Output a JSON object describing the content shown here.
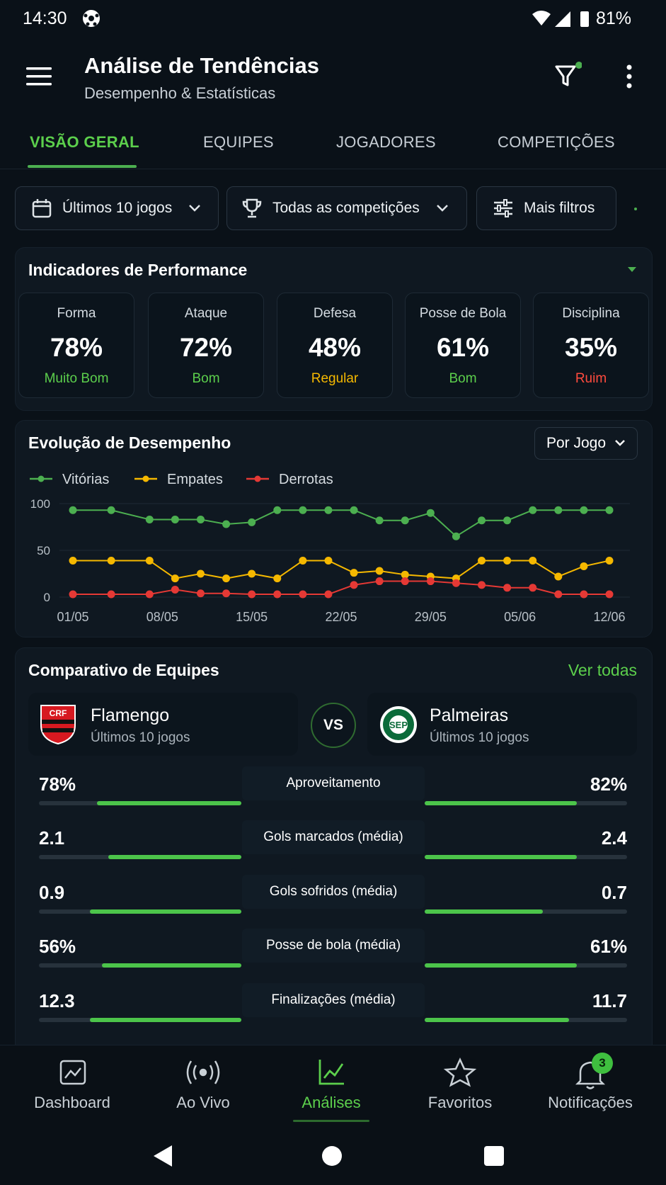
{
  "status_bar": {
    "time": "14:30",
    "battery": "81%"
  },
  "header": {
    "title": "Análise de Tendências",
    "subtitle": "Desempenho & Estatísticas"
  },
  "tabs": [
    "VISÃO GERAL",
    "EQUIPES",
    "JOGADORES",
    "COMPETIÇÕES"
  ],
  "filters": [
    "Últimos 10 jogos",
    "Todas as competições",
    "Mais filtros"
  ],
  "performance": {
    "title": "Indicadores de Performance",
    "cards": [
      {
        "label": "Forma",
        "value": "78%",
        "rating": "Muito Bom",
        "color": "#5ccf4c"
      },
      {
        "label": "Ataque",
        "value": "72%",
        "rating": "Bom",
        "color": "#5ccf4c"
      },
      {
        "label": "Defesa",
        "value": "48%",
        "rating": "Regular",
        "color": "#f5b800"
      },
      {
        "label": "Posse de Bola",
        "value": "61%",
        "rating": "Bom",
        "color": "#5ccf4c"
      },
      {
        "label": "Disciplina",
        "value": "35%",
        "rating": "Ruim",
        "color": "#ff4b3e"
      }
    ]
  },
  "chart_data": {
    "type": "line",
    "title": "Evolução de Desempenho",
    "period": "Por Jogo",
    "x": [
      "01/05",
      "04/05",
      "07/05",
      "09/05",
      "11/05",
      "13/05",
      "15/05",
      "17/05",
      "19/05",
      "21/05",
      "23/05",
      "25/05",
      "27/05",
      "29/05",
      "31/05",
      "02/06",
      "04/06",
      "06/06",
      "08/06",
      "10/06",
      "12/06"
    ],
    "xticks": [
      "01/05",
      "08/05",
      "15/05",
      "22/05",
      "29/05",
      "05/06",
      "12/06"
    ],
    "ylim": [
      0,
      100
    ],
    "yticks": [
      0,
      50,
      100
    ],
    "grid": true,
    "series": [
      {
        "name": "Vitórias",
        "color": "#4caf50",
        "values": [
          93,
          93,
          83,
          83,
          83,
          78,
          80,
          93,
          93,
          93,
          93,
          82,
          82,
          90,
          65,
          82,
          82,
          93,
          93,
          93,
          93
        ]
      },
      {
        "name": "Empates",
        "color": "#f5b800",
        "values": [
          39,
          39,
          39,
          20,
          25,
          20,
          25,
          20,
          39,
          39,
          26,
          28,
          24,
          22,
          20,
          39,
          39,
          39,
          22,
          33,
          39
        ]
      },
      {
        "name": "Derrotas",
        "color": "#e53935",
        "values": [
          3,
          3,
          3,
          8,
          4,
          4,
          3,
          3,
          3,
          3,
          13,
          17,
          17,
          17,
          15,
          13,
          10,
          10,
          3,
          3,
          3
        ]
      }
    ]
  },
  "comparison": {
    "title": "Comparativo de Equipes",
    "link": "Ver todas",
    "vs": "VS",
    "teams": [
      {
        "name": "Flamengo",
        "subtitle": "Últimos 10 jogos"
      },
      {
        "name": "Palmeiras",
        "subtitle": "Últimos 10 jogos"
      }
    ],
    "stats": [
      {
        "label": "Aproveitamento",
        "values": [
          78,
          82
        ],
        "value_labels": [
          "78%",
          "82%"
        ]
      },
      {
        "label": "Gols marcados (média)",
        "values": [
          2.1,
          2.4
        ]
      },
      {
        "label": "Gols sofridos (média)",
        "values": [
          0.9,
          0.7
        ]
      },
      {
        "label": "Posse de bola (média)",
        "values": [
          56,
          61
        ],
        "value_labels": [
          "56%",
          "61%"
        ]
      },
      {
        "label": "Finalizações (média)",
        "values": [
          12.3,
          11.7
        ]
      }
    ]
  },
  "nav": {
    "items": [
      "Dashboard",
      "Ao Vivo",
      "Análises",
      "Favoritos",
      "Notificações"
    ],
    "badge": "3"
  }
}
